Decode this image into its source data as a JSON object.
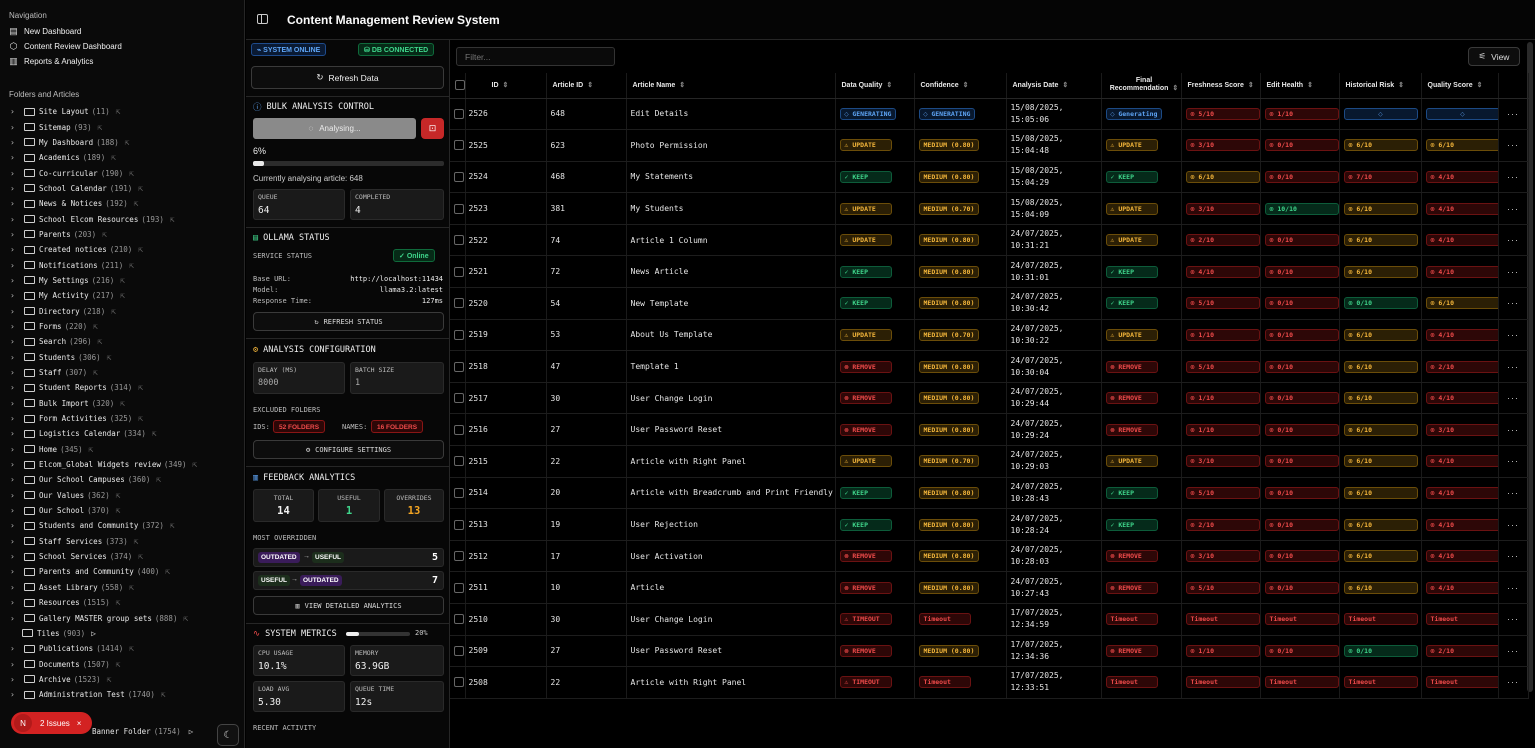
{
  "sidebar": {
    "nav_title": "Navigation",
    "nav_items": [
      {
        "label": "New Dashboard",
        "icon": "chart-icon"
      },
      {
        "label": "Content Review Dashboard",
        "icon": "cube-icon"
      },
      {
        "label": "Reports & Analytics",
        "icon": "bar-chart-icon"
      }
    ],
    "folders_title": "Folders and Articles",
    "folders": [
      {
        "name": "Site Layout",
        "count": "(11)"
      },
      {
        "name": "Sitemap",
        "count": "(93)"
      },
      {
        "name": "My Dashboard",
        "count": "(188)"
      },
      {
        "name": "Academics",
        "count": "(189)"
      },
      {
        "name": "Co-curricular",
        "count": "(190)"
      },
      {
        "name": "School Calendar",
        "count": "(191)"
      },
      {
        "name": "News & Notices",
        "count": "(192)"
      },
      {
        "name": "School Elcom Resources",
        "count": "(193)"
      },
      {
        "name": "Parents",
        "count": "(203)"
      },
      {
        "name": "Created notices",
        "count": "(210)"
      },
      {
        "name": "Notifications",
        "count": "(211)"
      },
      {
        "name": "My Settings",
        "count": "(216)"
      },
      {
        "name": "My Activity",
        "count": "(217)"
      },
      {
        "name": "Directory",
        "count": "(218)"
      },
      {
        "name": "Forms",
        "count": "(220)"
      },
      {
        "name": "Search",
        "count": "(296)"
      },
      {
        "name": "Students",
        "count": "(306)"
      },
      {
        "name": "Staff",
        "count": "(307)"
      },
      {
        "name": "Student Reports",
        "count": "(314)"
      },
      {
        "name": "Bulk Import",
        "count": "(320)"
      },
      {
        "name": "Form Activities",
        "count": "(325)"
      },
      {
        "name": "Logistics Calendar",
        "count": "(334)"
      },
      {
        "name": "Home",
        "count": "(345)"
      },
      {
        "name": "Elcom_Global Widgets review",
        "count": "(349)"
      },
      {
        "name": "Our School Campuses",
        "count": "(360)"
      },
      {
        "name": "Our Values",
        "count": "(362)"
      },
      {
        "name": "Our School",
        "count": "(370)"
      },
      {
        "name": "Students and Community",
        "count": "(372)"
      },
      {
        "name": "Staff Services",
        "count": "(373)"
      },
      {
        "name": "School Services",
        "count": "(374)"
      },
      {
        "name": "Parents and Community",
        "count": "(400)"
      },
      {
        "name": "Asset Library",
        "count": "(558)"
      },
      {
        "name": "Resources",
        "count": "(1515)"
      },
      {
        "name": "Gallery MASTER group sets",
        "count": "(888)"
      },
      {
        "name": "Tiles",
        "count": "(903)"
      },
      {
        "name": "Publications",
        "count": "(1414)"
      },
      {
        "name": "Documents",
        "count": "(1507)"
      },
      {
        "name": "Archive",
        "count": "(1523)"
      },
      {
        "name": "Administration Test",
        "count": "(1740)"
      }
    ],
    "banner_folder": {
      "name": "Banner Folder",
      "count": "(1754)"
    },
    "issues_label": "2 Issues",
    "issues_avatar": "N"
  },
  "header": {
    "title": "Content Management Review System"
  },
  "panel": {
    "system_online": "SYSTEM ONLINE",
    "db_connected": "DB CONNECTED",
    "refresh_label": "Refresh Data",
    "bulk_title": "BULK ANALYSIS CONTROL",
    "analysing_label": "Analysing...",
    "progress_pct": "6%",
    "progress_value": 0.06,
    "currently_label": "Currently analysing article: 648",
    "queue_label": "QUEUE",
    "queue_value": "64",
    "completed_label": "COMPLETED",
    "completed_value": "4",
    "ollama_title": "OLLAMA STATUS",
    "service_status_label": "SERVICE STATUS",
    "online_label": "Online",
    "base_url_label": "Base URL:",
    "base_url_value": "http://localhost:11434",
    "model_label": "Model:",
    "model_value": "llama3.2:latest",
    "response_label": "Response Time:",
    "response_value": "127ms",
    "refresh_status_label": "REFRESH STATUS",
    "analysis_config_title": "ANALYSIS CONFIGURATION",
    "delay_label": "DELAY (MS)",
    "delay_value": "8000",
    "batch_label": "BATCH SIZE",
    "batch_value": "1",
    "excluded_label": "EXCLUDED FOLDERS",
    "ids_label": "IDS:",
    "ids_value": "52 FOLDERS",
    "names_label": "NAMES:",
    "names_value": "16 FOLDERS",
    "configure_label": "CONFIGURE SETTINGS",
    "feedback_title": "FEEDBACK ANALYTICS",
    "total_label": "TOTAL",
    "total_value": "14",
    "useful_label": "USEFUL",
    "useful_value": "1",
    "overrides_label": "OVERRIDES",
    "overrides_value": "13",
    "most_overridden_label": "MOST OVERRIDDEN",
    "override1_from": "OUTDATED",
    "override1_to": "USEFUL",
    "override1_count": "5",
    "override2_from": "USEFUL",
    "override2_to": "OUTDATED",
    "override2_count": "7",
    "view_analytics_label": "VIEW DETAILED ANALYTICS",
    "metrics_title": "SYSTEM METRICS",
    "metrics_pct": "20%",
    "metrics_value": 0.2,
    "cpu_label": "CPU USAGE",
    "cpu_value": "10.1%",
    "memory_label": "MEMORY",
    "memory_value": "63.9GB",
    "load_label": "LOAD AVG",
    "load_value": "5.30",
    "queue_time_label": "QUEUE TIME",
    "queue_time_value": "12s",
    "recent_label": "RECENT ACTIVITY"
  },
  "main": {
    "filter_placeholder": "Filter...",
    "view_label": "View",
    "columns": [
      "ID",
      "Article ID",
      "Article Name",
      "Data Quality",
      "Confidence",
      "Analysis Date",
      "Final Recommendation",
      "Freshness Score",
      "Edit Health",
      "Historical Risk",
      "Quality Score"
    ],
    "rows": [
      {
        "id": "2526",
        "article_id": "648",
        "name": "Edit Details",
        "dq": "GENERATING",
        "dq_t": "gen",
        "conf": "GENERATING",
        "conf_t": "gen",
        "date1": "15/08/2025,",
        "date2": "15:05:06",
        "final": "Generating",
        "final_t": "gen",
        "fresh": "5/10",
        "fresh_t": "red",
        "edit": "1/10",
        "edit_t": "red",
        "hist": "",
        "hist_t": "spin",
        "qual": "",
        "qual_t": "spin"
      },
      {
        "id": "2525",
        "article_id": "623",
        "name": "Photo Permission",
        "dq": "UPDATE",
        "dq_t": "upd",
        "conf": "MEDIUM (0.80)",
        "conf_t": "amb",
        "date1": "15/08/2025,",
        "date2": "15:04:48",
        "final": "UPDATE",
        "final_t": "upd",
        "fresh": "3/10",
        "fresh_t": "red",
        "edit": "0/10",
        "edit_t": "red",
        "hist": "6/10",
        "hist_t": "amb",
        "qual": "6/10",
        "qual_t": "amb"
      },
      {
        "id": "2524",
        "article_id": "468",
        "name": "My Statements",
        "dq": "KEEP",
        "dq_t": "keep",
        "conf": "MEDIUM (0.80)",
        "conf_t": "amb",
        "date1": "15/08/2025,",
        "date2": "15:04:29",
        "final": "KEEP",
        "final_t": "keep",
        "fresh": "6/10",
        "fresh_t": "amb",
        "edit": "0/10",
        "edit_t": "red",
        "hist": "7/10",
        "hist_t": "red",
        "qual": "4/10",
        "qual_t": "red"
      },
      {
        "id": "2523",
        "article_id": "381",
        "name": "My Students",
        "dq": "UPDATE",
        "dq_t": "upd",
        "conf": "MEDIUM (0.70)",
        "conf_t": "amb",
        "date1": "15/08/2025,",
        "date2": "15:04:09",
        "final": "UPDATE",
        "final_t": "upd",
        "fresh": "3/10",
        "fresh_t": "red",
        "edit": "10/10",
        "edit_t": "grn",
        "hist": "6/10",
        "hist_t": "amb",
        "qual": "4/10",
        "qual_t": "red"
      },
      {
        "id": "2522",
        "article_id": "74",
        "name": "Article 1 Column",
        "dq": "UPDATE",
        "dq_t": "upd",
        "conf": "MEDIUM (0.80)",
        "conf_t": "amb",
        "date1": "24/07/2025,",
        "date2": "10:31:21",
        "final": "UPDATE",
        "final_t": "upd",
        "fresh": "2/10",
        "fresh_t": "red",
        "edit": "0/10",
        "edit_t": "red",
        "hist": "6/10",
        "hist_t": "amb",
        "qual": "4/10",
        "qual_t": "red"
      },
      {
        "id": "2521",
        "article_id": "72",
        "name": "News Article",
        "dq": "KEEP",
        "dq_t": "keep",
        "conf": "MEDIUM (0.80)",
        "conf_t": "amb",
        "date1": "24/07/2025,",
        "date2": "10:31:01",
        "final": "KEEP",
        "final_t": "keep",
        "fresh": "4/10",
        "fresh_t": "red",
        "edit": "0/10",
        "edit_t": "red",
        "hist": "6/10",
        "hist_t": "amb",
        "qual": "4/10",
        "qual_t": "red"
      },
      {
        "id": "2520",
        "article_id": "54",
        "name": "New Template",
        "dq": "KEEP",
        "dq_t": "keep",
        "conf": "MEDIUM (0.80)",
        "conf_t": "amb",
        "date1": "24/07/2025,",
        "date2": "10:30:42",
        "final": "KEEP",
        "final_t": "keep",
        "fresh": "5/10",
        "fresh_t": "red",
        "edit": "0/10",
        "edit_t": "red",
        "hist": "0/10",
        "hist_t": "grn",
        "qual": "6/10",
        "qual_t": "amb"
      },
      {
        "id": "2519",
        "article_id": "53",
        "name": "About Us Template",
        "dq": "UPDATE",
        "dq_t": "upd",
        "conf": "MEDIUM (0.70)",
        "conf_t": "amb",
        "date1": "24/07/2025,",
        "date2": "10:30:22",
        "final": "UPDATE",
        "final_t": "upd",
        "fresh": "1/10",
        "fresh_t": "red",
        "edit": "0/10",
        "edit_t": "red",
        "hist": "6/10",
        "hist_t": "amb",
        "qual": "4/10",
        "qual_t": "red"
      },
      {
        "id": "2518",
        "article_id": "47",
        "name": "Template 1",
        "dq": "REMOVE",
        "dq_t": "rem",
        "conf": "MEDIUM (0.80)",
        "conf_t": "amb",
        "date1": "24/07/2025,",
        "date2": "10:30:04",
        "final": "REMOVE",
        "final_t": "rem",
        "fresh": "5/10",
        "fresh_t": "red",
        "edit": "0/10",
        "edit_t": "red",
        "hist": "6/10",
        "hist_t": "amb",
        "qual": "2/10",
        "qual_t": "red"
      },
      {
        "id": "2517",
        "article_id": "30",
        "name": "User Change Login",
        "dq": "REMOVE",
        "dq_t": "rem",
        "conf": "MEDIUM (0.80)",
        "conf_t": "amb",
        "date1": "24/07/2025,",
        "date2": "10:29:44",
        "final": "REMOVE",
        "final_t": "rem",
        "fresh": "1/10",
        "fresh_t": "red",
        "edit": "0/10",
        "edit_t": "red",
        "hist": "6/10",
        "hist_t": "amb",
        "qual": "4/10",
        "qual_t": "red"
      },
      {
        "id": "2516",
        "article_id": "27",
        "name": "User Password Reset",
        "dq": "REMOVE",
        "dq_t": "rem",
        "conf": "MEDIUM (0.80)",
        "conf_t": "amb",
        "date1": "24/07/2025,",
        "date2": "10:29:24",
        "final": "REMOVE",
        "final_t": "rem",
        "fresh": "1/10",
        "fresh_t": "red",
        "edit": "0/10",
        "edit_t": "red",
        "hist": "6/10",
        "hist_t": "amb",
        "qual": "3/10",
        "qual_t": "red"
      },
      {
        "id": "2515",
        "article_id": "22",
        "name": "Article with Right Panel",
        "dq": "UPDATE",
        "dq_t": "upd",
        "conf": "MEDIUM (0.70)",
        "conf_t": "amb",
        "date1": "24/07/2025,",
        "date2": "10:29:03",
        "final": "UPDATE",
        "final_t": "upd",
        "fresh": "3/10",
        "fresh_t": "red",
        "edit": "0/10",
        "edit_t": "red",
        "hist": "6/10",
        "hist_t": "amb",
        "qual": "4/10",
        "qual_t": "red"
      },
      {
        "id": "2514",
        "article_id": "20",
        "name": "Article with Breadcrumb and Print Friendly",
        "dq": "KEEP",
        "dq_t": "keep",
        "conf": "MEDIUM (0.80)",
        "conf_t": "amb",
        "date1": "24/07/2025,",
        "date2": "10:28:43",
        "final": "KEEP",
        "final_t": "keep",
        "fresh": "5/10",
        "fresh_t": "red",
        "edit": "0/10",
        "edit_t": "red",
        "hist": "6/10",
        "hist_t": "amb",
        "qual": "4/10",
        "qual_t": "red"
      },
      {
        "id": "2513",
        "article_id": "19",
        "name": "User Rejection",
        "dq": "KEEP",
        "dq_t": "keep",
        "conf": "MEDIUM (0.80)",
        "conf_t": "amb",
        "date1": "24/07/2025,",
        "date2": "10:28:24",
        "final": "KEEP",
        "final_t": "keep",
        "fresh": "2/10",
        "fresh_t": "red",
        "edit": "0/10",
        "edit_t": "red",
        "hist": "6/10",
        "hist_t": "amb",
        "qual": "4/10",
        "qual_t": "red"
      },
      {
        "id": "2512",
        "article_id": "17",
        "name": "User Activation",
        "dq": "REMOVE",
        "dq_t": "rem",
        "conf": "MEDIUM (0.80)",
        "conf_t": "amb",
        "date1": "24/07/2025,",
        "date2": "10:28:03",
        "final": "REMOVE",
        "final_t": "rem",
        "fresh": "3/10",
        "fresh_t": "red",
        "edit": "0/10",
        "edit_t": "red",
        "hist": "6/10",
        "hist_t": "amb",
        "qual": "4/10",
        "qual_t": "red"
      },
      {
        "id": "2511",
        "article_id": "10",
        "name": "Article",
        "dq": "REMOVE",
        "dq_t": "rem",
        "conf": "MEDIUM (0.80)",
        "conf_t": "amb",
        "date1": "24/07/2025,",
        "date2": "10:27:43",
        "final": "REMOVE",
        "final_t": "rem",
        "fresh": "5/10",
        "fresh_t": "red",
        "edit": "0/10",
        "edit_t": "red",
        "hist": "6/10",
        "hist_t": "amb",
        "qual": "4/10",
        "qual_t": "red"
      },
      {
        "id": "2510",
        "article_id": "30",
        "name": "User Change Login",
        "dq": "TIMEOUT",
        "dq_t": "rem",
        "conf": "Timeout",
        "conf_t": "red",
        "date1": "17/07/2025,",
        "date2": "12:34:59",
        "final": "Timeout",
        "final_t": "red",
        "fresh": "Timeout",
        "fresh_t": "red",
        "edit": "Timeout",
        "edit_t": "red",
        "hist": "Timeout",
        "hist_t": "red",
        "qual": "Timeout",
        "qual_t": "red"
      },
      {
        "id": "2509",
        "article_id": "27",
        "name": "User Password Reset",
        "dq": "REMOVE",
        "dq_t": "rem",
        "conf": "MEDIUM (0.80)",
        "conf_t": "amb",
        "date1": "17/07/2025,",
        "date2": "12:34:36",
        "final": "REMOVE",
        "final_t": "rem",
        "fresh": "1/10",
        "fresh_t": "red",
        "edit": "0/10",
        "edit_t": "red",
        "hist": "0/10",
        "hist_t": "grn",
        "qual": "2/10",
        "qual_t": "red"
      },
      {
        "id": "2508",
        "article_id": "22",
        "name": "Article with Right Panel",
        "dq": "TIMEOUT",
        "dq_t": "rem",
        "conf": "Timeout",
        "conf_t": "red",
        "date1": "17/07/2025,",
        "date2": "12:33:51",
        "final": "Timeout",
        "final_t": "red",
        "fresh": "Timeout",
        "fresh_t": "red",
        "edit": "Timeout",
        "edit_t": "red",
        "hist": "Timeout",
        "hist_t": "red",
        "qual": "Timeout",
        "qual_t": "red"
      }
    ]
  }
}
